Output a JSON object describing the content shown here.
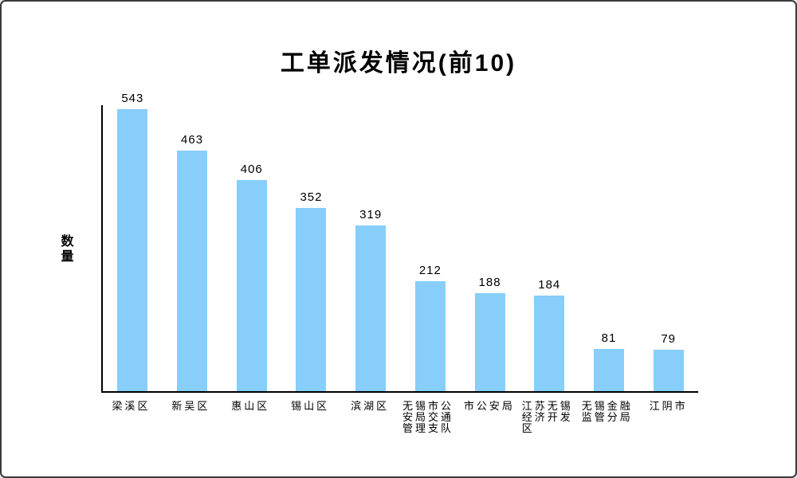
{
  "chart_data": {
    "type": "bar",
    "title": "工单派发情况(前10)",
    "ylabel": "数量",
    "xlabel": "",
    "categories": [
      "梁溪区",
      "新吴区",
      "惠山区",
      "锡山区",
      "滨湖区",
      "无锡市公安局交通管理支队",
      "市公安局",
      "江苏无锡经济开发区",
      "无锡金融监管分局",
      "江阴市"
    ],
    "values": [
      543,
      463,
      406,
      352,
      319,
      212,
      188,
      184,
      81,
      79
    ],
    "data_labels": [
      543,
      463,
      406,
      352,
      319,
      212,
      188,
      184,
      81,
      79
    ],
    "ylim": [
      0,
      550
    ],
    "grid": false,
    "legend": false,
    "bar_color": "#87CEFA",
    "axis_color": "#000000",
    "text_color": "#000000",
    "background_color": "#FFFFFF"
  }
}
